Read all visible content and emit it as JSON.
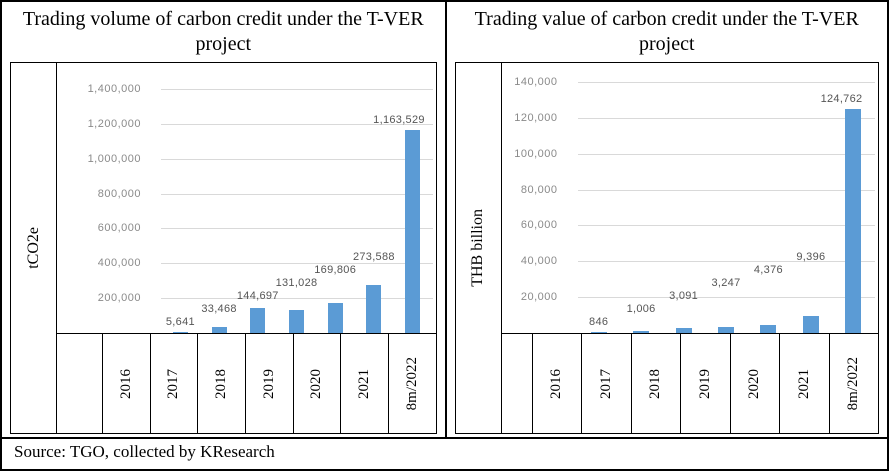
{
  "source_note": "Source: TGO, collected by KResearch",
  "colors": {
    "bar": "#5B9BD5",
    "gridline": "#D9D9D9",
    "tick_label": "#8A8A8A",
    "data_label": "#555555",
    "border": "#000000"
  },
  "chart_data": [
    {
      "type": "bar",
      "title": "Trading volume of carbon credit under the T-VER project",
      "ylabel": "tCO2e",
      "xlabel": "",
      "categories": [
        "2016",
        "2017",
        "2018",
        "2019",
        "2020",
        "2021",
        "8m/2022"
      ],
      "values": [
        5641,
        33468,
        144697,
        131028,
        169806,
        273588,
        1163529
      ],
      "value_labels": [
        "5,641",
        "33,468",
        "144,697",
        "131,028",
        "169,806",
        "273,588",
        "1,163,529"
      ],
      "yticks": [
        200000,
        400000,
        600000,
        800000,
        1000000,
        1200000,
        1400000
      ],
      "ytick_labels": [
        "200,000",
        "400,000",
        "600,000",
        "800,000",
        "1,000,000",
        "1,200,000",
        "1,400,000"
      ],
      "ylim": [
        0,
        1450000
      ],
      "grid": true,
      "legend": "none"
    },
    {
      "type": "bar",
      "title": "Trading value of carbon credit under the T-VER project",
      "ylabel": "THB billion",
      "xlabel": "",
      "categories": [
        "2016",
        "2017",
        "2018",
        "2019",
        "2020",
        "2021",
        "8m/2022"
      ],
      "values": [
        846,
        1006,
        3091,
        3247,
        4376,
        9396,
        124762
      ],
      "value_labels": [
        "846",
        "1,006",
        "3,091",
        "3,247",
        "4,376",
        "9,396",
        "124,762"
      ],
      "yticks": [
        20000,
        40000,
        60000,
        80000,
        100000,
        120000,
        140000
      ],
      "ytick_labels": [
        "20,000",
        "40,000",
        "60,000",
        "80,000",
        "100,000",
        "120,000",
        "140,000"
      ],
      "ylim": [
        0,
        145000
      ],
      "grid": true,
      "legend": "none"
    }
  ]
}
